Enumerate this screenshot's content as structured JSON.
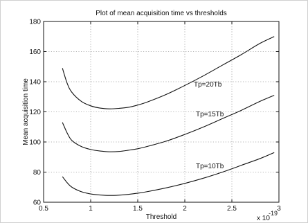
{
  "chart_data": {
    "type": "line",
    "title": "Plot of mean acquisition time vs thresholds",
    "xlabel": "Threshold",
    "ylabel": "Mean acquisition time",
    "x_multiplier_label": "x 10",
    "x_multiplier_exponent": "-19",
    "xlim": [
      0.5,
      3
    ],
    "ylim": [
      60,
      180
    ],
    "xticks": [
      "0.5",
      "1",
      "1.5",
      "2",
      "2.5",
      "3"
    ],
    "yticks": [
      "60",
      "80",
      "100",
      "120",
      "140",
      "160",
      "180"
    ],
    "grid": true,
    "series": [
      {
        "name": "Tp=20Tb",
        "x": [
          0.7,
          0.75,
          0.8,
          0.9,
          1.0,
          1.1,
          1.2,
          1.3,
          1.4,
          1.5,
          1.6,
          1.8,
          2.0,
          2.2,
          2.4,
          2.6,
          2.8,
          2.95
        ],
        "values": [
          149,
          139,
          133,
          127,
          124,
          122.5,
          122,
          122.3,
          123,
          124.5,
          126.5,
          131.5,
          137.5,
          144,
          151,
          158,
          165.5,
          170
        ]
      },
      {
        "name": "Tp=15Tb",
        "x": [
          0.7,
          0.75,
          0.8,
          0.9,
          1.0,
          1.1,
          1.2,
          1.3,
          1.4,
          1.5,
          1.6,
          1.8,
          2.0,
          2.2,
          2.4,
          2.6,
          2.8,
          2.95
        ],
        "values": [
          113,
          106,
          101,
          97,
          95,
          94,
          93.5,
          93.7,
          94.5,
          95.5,
          97,
          100.5,
          105,
          110,
          115.5,
          121,
          127,
          131
        ]
      },
      {
        "name": "Tp=10Tb",
        "x": [
          0.7,
          0.75,
          0.8,
          0.9,
          1.0,
          1.1,
          1.2,
          1.3,
          1.4,
          1.5,
          1.6,
          1.8,
          2.0,
          2.2,
          2.4,
          2.6,
          2.8,
          2.95
        ],
        "values": [
          77,
          73,
          70,
          67,
          65.5,
          64.8,
          64.5,
          64.7,
          65.2,
          66,
          67,
          69.5,
          72.5,
          76,
          80,
          84.5,
          89,
          93
        ]
      }
    ]
  }
}
